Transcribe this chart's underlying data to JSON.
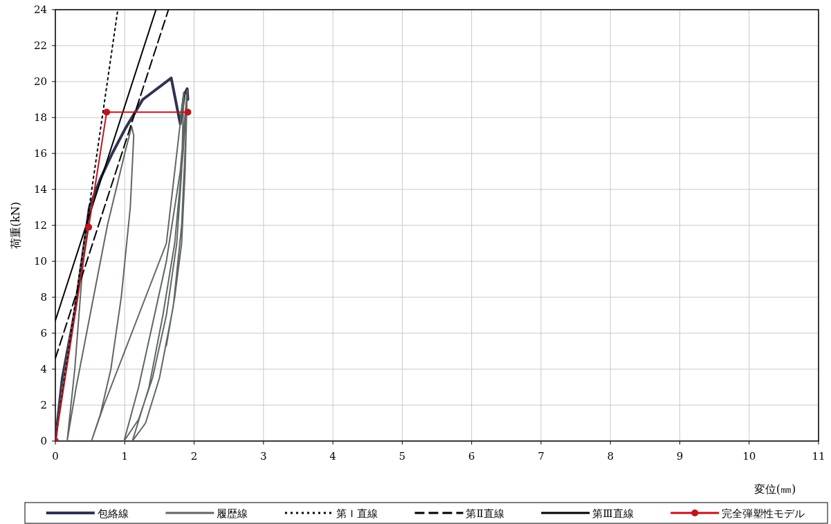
{
  "chart_data": {
    "type": "line",
    "xlabel": "変位(㎜)",
    "ylabel": "荷重(kN)",
    "xlim": [
      0,
      11
    ],
    "xticks": [
      0,
      1,
      2,
      3,
      4,
      5,
      6,
      7,
      8,
      9,
      10,
      11
    ],
    "ylim": [
      0,
      24
    ],
    "yticks": [
      0,
      2,
      4,
      6,
      8,
      10,
      12,
      14,
      16,
      18,
      20,
      22,
      24
    ],
    "grid": true,
    "legend": "bottom",
    "marker": "none",
    "line_style": "solid",
    "series": [
      {
        "name": "包絡線",
        "color": "#2e3350",
        "x": [
          0,
          0.1,
          0.28,
          0.49,
          0.65,
          0.82,
          1.01,
          1.26,
          1.67,
          1.8,
          1.86,
          1.9,
          1.91
        ],
        "values": [
          0,
          3.5,
          7.2,
          13.0,
          14.6,
          16.0,
          17.4,
          19.0,
          20.2,
          17.65,
          19.3,
          19.6,
          19.0
        ]
      },
      {
        "name": "履歴線",
        "color": "#5f6661",
        "x": [
          0,
          0.1,
          0.3,
          0.45,
          0.38,
          0.28,
          0.17,
          0.3,
          0.5,
          0.75,
          1.0,
          1.1,
          1.13,
          1.08,
          0.95,
          0.8,
          0.65,
          0.52,
          0.7,
          0.9,
          1.1,
          1.4,
          1.6,
          1.78,
          1.85,
          1.82,
          1.75,
          1.6,
          1.4,
          1.2,
          0.99,
          1.2,
          1.4,
          1.6,
          1.8,
          1.9,
          1.88,
          1.82,
          1.7,
          1.5,
          1.3,
          1.11,
          1.35,
          1.55,
          1.72,
          1.84,
          1.9,
          1.87,
          1.82,
          1.72,
          1.6
        ],
        "values": [
          0,
          3,
          8,
          12,
          9,
          4,
          0,
          3,
          7,
          12,
          16,
          17.5,
          17,
          13,
          8,
          4,
          1.5,
          0,
          2,
          4,
          6,
          9,
          11,
          17,
          19.4,
          15,
          11,
          7,
          3.5,
          1.2,
          0,
          3,
          6.5,
          10,
          15,
          19.5,
          17,
          12,
          7.5,
          3.5,
          1,
          0,
          3,
          7,
          11,
          16,
          19.4,
          15,
          11,
          8,
          5.3
        ]
      },
      {
        "name": "第Ｉ直線",
        "color": "#000000",
        "line_style": "dotted",
        "x": [
          0,
          0.9
        ],
        "values": [
          0,
          24
        ]
      },
      {
        "name": "第Ⅱ直線",
        "color": "#000000",
        "line_style": "dashed",
        "x": [
          0,
          1.63
        ],
        "values": [
          4.6,
          24
        ]
      },
      {
        "name": "第Ⅲ直線",
        "color": "#000000",
        "x": [
          0,
          1.45
        ],
        "values": [
          6.7,
          24
        ]
      },
      {
        "name": "完全弾塑性モデル",
        "color": "#c0141c",
        "marker": "circle",
        "x": [
          0,
          0.48,
          0.74,
          1.91
        ],
        "values": [
          0,
          11.9,
          18.3,
          18.3
        ]
      }
    ]
  }
}
